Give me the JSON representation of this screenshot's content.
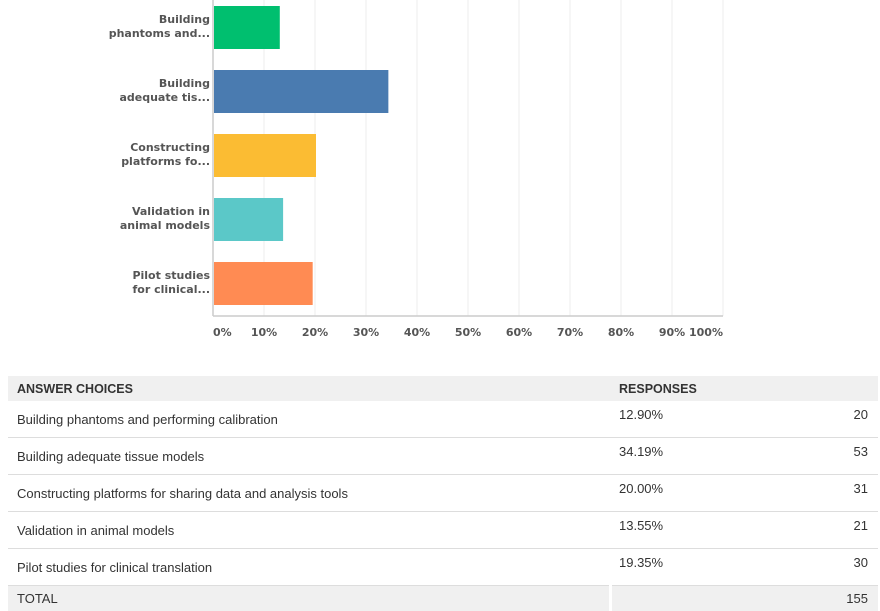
{
  "chart_data": {
    "type": "bar",
    "orientation": "horizontal",
    "categories": [
      "Building phantoms and...",
      "Building adequate tis...",
      "Constructing platforms fo...",
      "Validation in animal models",
      "Pilot studies for clinical..."
    ],
    "category_lines": [
      [
        "Building",
        "phantoms and..."
      ],
      [
        "Building",
        "adequate tis..."
      ],
      [
        "Constructing",
        "platforms fo..."
      ],
      [
        "Validation in",
        "animal models"
      ],
      [
        "Pilot studies",
        "for clinical..."
      ]
    ],
    "values": [
      12.9,
      34.19,
      20.0,
      13.55,
      19.35
    ],
    "colors": [
      "#00bf6f",
      "#4a7bb0",
      "#fbbc33",
      "#5bc8c8",
      "#ff8b53"
    ],
    "xlim": [
      0,
      100
    ],
    "xticks": [
      "0%",
      "10%",
      "20%",
      "30%",
      "40%",
      "50%",
      "60%",
      "70%",
      "80%",
      "90%",
      "100%"
    ],
    "grid": true,
    "title": "",
    "xlabel": "",
    "ylabel": ""
  },
  "table": {
    "headers": [
      "ANSWER CHOICES",
      "RESPONSES"
    ],
    "rows": [
      {
        "choice": " Building phantoms and performing calibration",
        "pct": "12.90%",
        "count": "20"
      },
      {
        "choice": "Building adequate tissue models",
        "pct": "34.19%",
        "count": "53"
      },
      {
        "choice": "Constructing platforms for sharing data and analysis tools",
        "pct": "20.00%",
        "count": "31"
      },
      {
        "choice": "Validation in animal models",
        "pct": "13.55%",
        "count": "21"
      },
      {
        "choice": "Pilot studies for clinical translation",
        "pct": "19.35%",
        "count": "30"
      }
    ],
    "total_label": "TOTAL",
    "total_count": "155"
  }
}
